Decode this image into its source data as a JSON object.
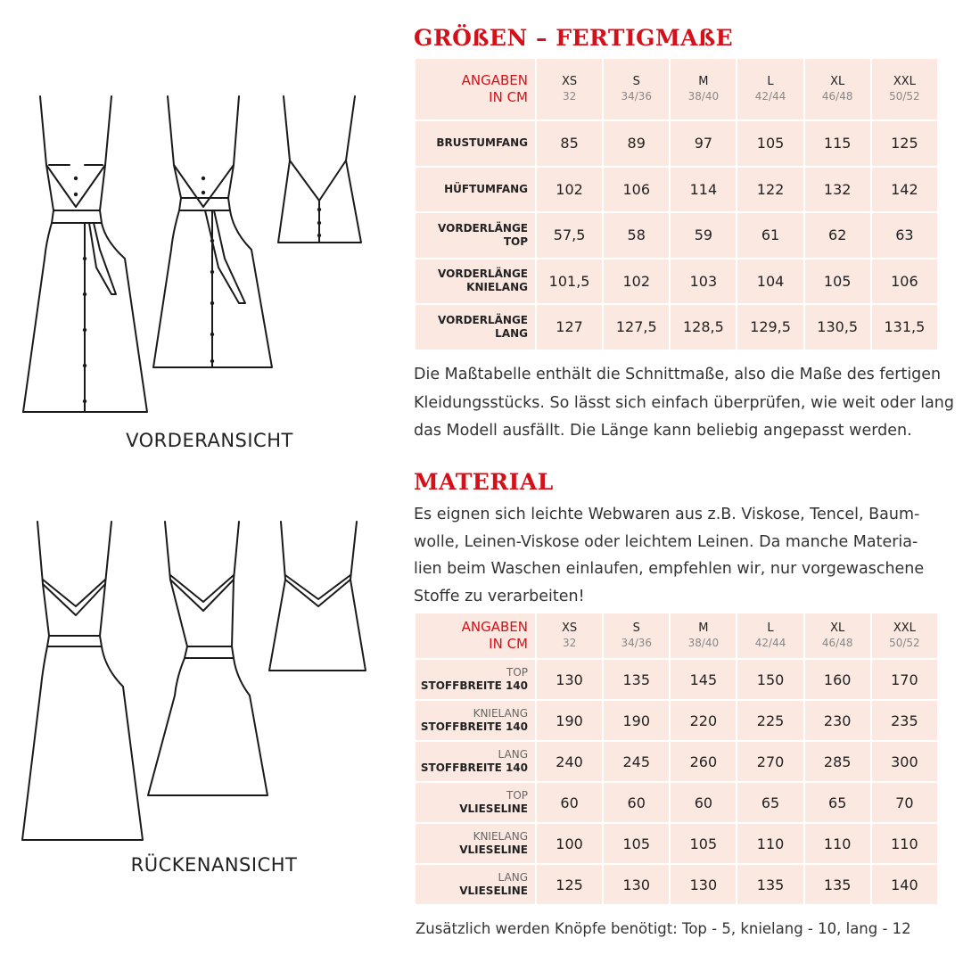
{
  "sizes_section": {
    "title": "GRÖßEN – FERTIGMAßE",
    "header_label": [
      "ANGABEN",
      "IN CM"
    ],
    "sizes": [
      {
        "name": "XS",
        "range": "32"
      },
      {
        "name": "S",
        "range": "34/36"
      },
      {
        "name": "M",
        "range": "38/40"
      },
      {
        "name": "L",
        "range": "42/44"
      },
      {
        "name": "XL",
        "range": "46/48"
      },
      {
        "name": "XXL",
        "range": "50/52"
      }
    ],
    "rows": [
      {
        "label": [
          "BRUSTUMFANG"
        ],
        "values": [
          "85",
          "89",
          "97",
          "105",
          "115",
          "125"
        ]
      },
      {
        "label": [
          "HÜFTUMFANG"
        ],
        "values": [
          "102",
          "106",
          "114",
          "122",
          "132",
          "142"
        ]
      },
      {
        "label": [
          "VORDERLÄNGE",
          "TOP"
        ],
        "values": [
          "57,5",
          "58",
          "59",
          "61",
          "62",
          "63"
        ]
      },
      {
        "label": [
          "VORDERLÄNGE",
          "KNIELANG"
        ],
        "values": [
          "101,5",
          "102",
          "103",
          "104",
          "105",
          "106"
        ]
      },
      {
        "label": [
          "VORDERLÄNGE",
          "LANG"
        ],
        "values": [
          "127",
          "127,5",
          "128,5",
          "129,5",
          "130,5",
          "131,5"
        ]
      }
    ],
    "description_lines": [
      "Die Maßtabelle enthält die Schnittmaße, also die Maße des fertigen",
      "Kleidungsstücks. So lässt sich einfach überprüfen, wie weit oder lang",
      "das Modell ausfällt. Die Länge kann beliebig angepasst werden."
    ]
  },
  "material_section": {
    "title": "MATERIAL",
    "description_lines": [
      "Es eignen sich leichte Webwaren aus z.B. Viskose, Tencel, Baum-",
      "wolle, Leinen-Viskose oder leichtem Leinen. Da manche Materia-",
      "lien beim Waschen einlaufen, empfehlen wir, nur vorgewaschene",
      "Stoffe zu verarbeiten!"
    ],
    "header_label": [
      "ANGABEN",
      "IN CM"
    ],
    "rows": [
      {
        "sub": "TOP",
        "label": "STOFFBREITE 140",
        "values": [
          "130",
          "135",
          "145",
          "150",
          "160",
          "170"
        ]
      },
      {
        "sub": "KNIELANG",
        "label": "STOFFBREITE 140",
        "values": [
          "190",
          "190",
          "220",
          "225",
          "230",
          "235"
        ]
      },
      {
        "sub": "LANG",
        "label": "STOFFBREITE 140",
        "values": [
          "240",
          "245",
          "260",
          "270",
          "285",
          "300"
        ]
      },
      {
        "sub": "TOP",
        "label": "VLIESELINE",
        "values": [
          "60",
          "60",
          "60",
          "65",
          "65",
          "70"
        ]
      },
      {
        "sub": "KNIELANG",
        "label": "VLIESELINE",
        "values": [
          "100",
          "105",
          "105",
          "110",
          "110",
          "110"
        ]
      },
      {
        "sub": "LANG",
        "label": "VLIESELINE",
        "values": [
          "125",
          "130",
          "130",
          "135",
          "135",
          "140"
        ]
      }
    ],
    "footnote": "Zusätzlich werden Knöpfe benötigt: Top - 5, knielang - 10, lang - 12"
  },
  "illustrations": {
    "front_caption": "VORDERANSICHT",
    "back_caption": "RÜCKENANSICHT"
  },
  "colors": {
    "accent": "#d4101a",
    "table_bg": "#fbe9e1"
  }
}
